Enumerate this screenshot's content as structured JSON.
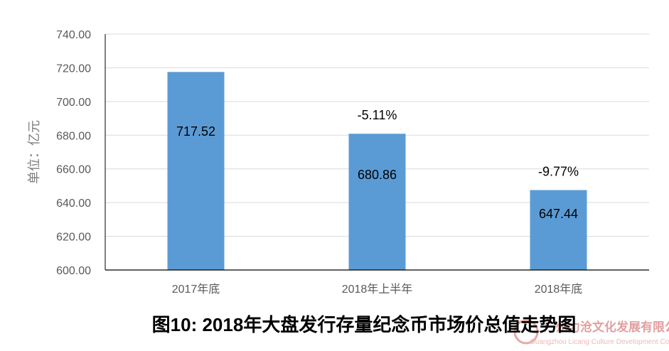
{
  "chart_data": {
    "type": "bar",
    "title": "图10: 2018年大盘发行存量纪念币市场价总值走势图",
    "ylabel": "单位：亿元",
    "xlabel": "",
    "categories": [
      "2017年底",
      "2018年上半年",
      "2018年底"
    ],
    "values": [
      717.52,
      680.86,
      647.44
    ],
    "value_labels": [
      "717.52",
      "680.86",
      "647.44"
    ],
    "change_labels": [
      "",
      "-5.11%",
      "-9.77%"
    ],
    "ylim": [
      600,
      740
    ],
    "yticks": [
      "600.00",
      "620.00",
      "640.00",
      "660.00",
      "680.00",
      "700.00",
      "720.00",
      "740.00"
    ],
    "grid": true,
    "legend": "none",
    "bar_color": "#5b9bd5"
  },
  "watermark": {
    "text_en": "Guangzhou Licang Culture Development Co.,LTD.",
    "text_cn": "广州力沧文化发展有限公司"
  }
}
